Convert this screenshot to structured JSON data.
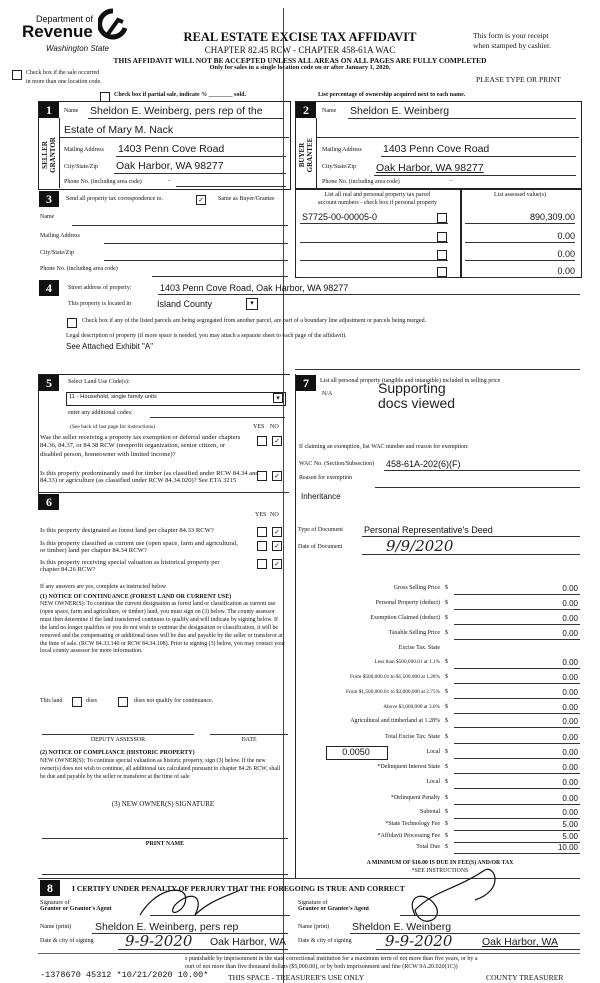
{
  "header": {
    "agency_line1": "Department of",
    "agency_line2": "Revenue",
    "agency_line3": "Washington State",
    "title": "REAL ESTATE EXCISE TAX AFFIDAVIT",
    "chapter": "CHAPTER 82.45 RCW - CHAPTER 458-61A WAC",
    "warning": "THIS AFFIDAVIT WILL NOT BE ACCEPTED UNLESS ALL AREAS ON ALL PAGES ARE FULLY COMPLETED",
    "only_for": "Only for sales in a single location code on or after January 1, 2020.",
    "receipt1": "This form is your receipt",
    "receipt2": "when stamped by cashier.",
    "please": "PLEASE TYPE OR PRINT",
    "multi_loc1": "Check box if the sale occurred",
    "multi_loc2": "in more than one location code.",
    "partial_sale": "Check box if partial sale, indicate %  ________  sold.",
    "list_pct": "List percentage of ownership acquired next to each name."
  },
  "section1": {
    "num": "1",
    "side": "SELLER GRANTOR",
    "name_label": "Name",
    "name": "Sheldon E. Weinberg, pers rep of the",
    "name2": "Estate of Mary M. Nack",
    "mail_label": "Mailing Address",
    "mail": "1403 Penn Cove Road",
    "city_label": "City/State/Zip",
    "city": "Oak Harbor, WA 98277",
    "phone_label": "Phone No. (including area code)",
    "phone": "-"
  },
  "section2": {
    "num": "2",
    "side": "BUYER GRANTEE",
    "name_label": "Name",
    "name": "Sheldon E. Weinberg",
    "mail_label": "Mailing Address",
    "mail": "1403 Penn Cove Road",
    "city_label": "City/State/Zip",
    "city": "Oak Harbor, WA 98277",
    "phone_label": "Phone No. (including area code)",
    "phone": "-"
  },
  "section3": {
    "num": "3",
    "send_label": "Send all property tax correspondence to.",
    "same_label": "Same as Buyer/Grantee",
    "same_checked": true,
    "name_label": "Name",
    "mail_label": "Mailing Address",
    "city_label": "City/State/Zip",
    "phone_label": "Phone No. (including area code)",
    "parcel_header1": "List all real and personal property tax parcel",
    "parcel_header2": "account numbers - check box if personal property",
    "assessed_header": "List assessed value(s)",
    "parcels": [
      {
        "number": "S7725-00-00005-0",
        "value": "890,309.00"
      },
      {
        "number": "",
        "value": "0.00"
      },
      {
        "number": "",
        "value": "0.00"
      },
      {
        "number": "",
        "value": "0.00"
      }
    ]
  },
  "section4": {
    "num": "4",
    "street_label": "Street address of property:",
    "street": "1403 Penn Cove Road, Oak Harbor, WA 98277",
    "county_label": "This property is located in",
    "county": "Island County",
    "segregate": "Check box if any of the listed parcels are being segregated from another parcel, are part of a boundary line adjustment or parcels being merged.",
    "legal_label": "Legal description of property (if more space is needed, you may attach a separate sheet to each page of the affidavit).",
    "legal": "See Attached Exhibit \"A\""
  },
  "section5": {
    "num": "5",
    "select_label": "Select Land Use Code(s):",
    "land_use": "11 - Household, single family units",
    "additional_label": "enter any additional codes:",
    "see_back": "(See back of last page for instructions)",
    "yes": "YES",
    "no": "NO",
    "q1": "Was the seller receiving a property tax exemption or deferral under chapters 84.36, 84.37, or 84.38 RCW (nonprofit organization, senior citizen, or disabled person, homeowner with limited income)?",
    "q2": "Is this property predominantly used for timber (as classified under RCW 84.34 and 84.33) or agriculture (as classified under RCW 84.34.020)? See ETA 3215"
  },
  "section6": {
    "num": "6",
    "yes": "YES",
    "no": "NO",
    "q1": "Is this property designated as forest land per chapter 84.33 RCW?",
    "q2": "Is this property classified as current use (open space, farm and agricultural, or timber) land per chapter 84.34 RCW?",
    "q3": "Is this property receiving special valuation as historical property per chapter 84.26 RCW?",
    "if_yes": "If any answers are yes, complete as instructed below",
    "n1_title": "(1) NOTICE OF CONTINUANCE (FOREST LAND OR CURRENT USE)",
    "n1_text": "NEW OWNER(S): To continue the current designation as forest land or classification as current use (open space, farm and agriculture, or timber) land, you must sign on (3) below. The county assessor must then determine if the land transferred continues to qualify and will indicate by signing below. If the land no longer qualifies or you do not wish to continue the designation or classification, it will be removed and the compensating or additional taxes will be due and payable by the seller or transferor at the time of sale. (RCW 84.33.140 or RCW 84.34.108). Prior to signing (3) below, you may contact your local county assessor for more information.",
    "this_land": "This land",
    "does": "does",
    "does_not": "does not qualify for continuance.",
    "deputy": "DEPUTY ASSESSOR",
    "date": "DATE",
    "n2_title": "(2) NOTICE OF COMPLIANCE (HISTORIC PROPERTY)",
    "n2_text": "NEW OWNER(S): To continue special valuation as historic property, sign (3) below. If the new owner(s) does not wish to continue, all additional tax calculated pursuant to chapter 84.26 RCW, shall be due and payable by the seller or transferor at the time of sale",
    "n3": "(3) NEW OWNER(S) SIGNATURE",
    "print_name": "PRINT NAME"
  },
  "section7": {
    "num": "7",
    "list_label": "List all personal property (tangible and intangible) included in selling price",
    "personal": "N/A",
    "stamp1": "Supporting",
    "stamp2": "docs viewed",
    "exempt_label": "If claiming an exemption, list WAC number and reason for exemption:",
    "wac_label": "WAC No. (Section/Subsection)",
    "wac": "458-61A-202(6)(F)",
    "reason_label": "Reason for exemption",
    "reason": "Inheritance",
    "doctype_label": "Type of Document",
    "doctype": "Personal Representative's Deed",
    "docdate_label": "Date of Document",
    "docdate": "9/9/2020"
  },
  "tax": {
    "rows": [
      {
        "label": "Gross Selling Price",
        "value": "0.00"
      },
      {
        "label": "Personal Property (deduct)",
        "value": "0.00"
      },
      {
        "label": "Exemption Claimed (deduct)",
        "value": "0.00"
      },
      {
        "label": "Taxable Selling Price",
        "value": "0.00"
      },
      {
        "label": "Excise Tax. State",
        "value": null
      },
      {
        "label": "Less than $500,000.01 at 1.1%",
        "value": "0.00",
        "small": true
      },
      {
        "label": "From $500,000.01 to $1,500,000 at 1.28%",
        "value": "0.00",
        "small": true
      },
      {
        "label": "From $1,500,000.01 to $3,000,000 at 2.75%",
        "value": "0.00",
        "small": true
      },
      {
        "label": "Above $3,000,000 at 3.0%",
        "value": "0.00",
        "small": true
      },
      {
        "label": "Agricultural and timberland at 1.28%",
        "value": "0.00"
      },
      {
        "label": "Total Excise Tax. State",
        "value": "0.00"
      },
      {
        "label": "Local",
        "value": "0.00",
        "rate": "0.0050"
      },
      {
        "label": "*Delinquent Interest State",
        "value": "0.00"
      },
      {
        "label": "Local",
        "value": "0.00"
      },
      {
        "label": "*Delinquent Penalty",
        "value": "0.00"
      },
      {
        "label": "Subtotal",
        "value": "0.00"
      },
      {
        "label": "*State Technology Fee",
        "value": "5.00"
      },
      {
        "label": "*Affidavit Processing Fee",
        "value": "5.00"
      },
      {
        "label": "Total Due",
        "value": "10.00"
      }
    ],
    "minimum": "A MINIMUM OF $10.00 IS DUE IN FEE(S) AND/OR TAX",
    "see": "*SEE INSTRUCTIONS"
  },
  "section8": {
    "num": "8",
    "certify": "I CERTIFY UNDER PENALTY OF PERJURY THAT THE FOREGOING IS TRUE AND CORRECT",
    "grantor_sig1": "Signature of",
    "grantor_sig2": "Grantor or Grantor's Agent",
    "grantee_sig1": "Signature of",
    "grantee_sig2": "Grantee or Grantee's Agent",
    "name_label": "Name (print)",
    "grantor_name": "Sheldon E. Weinberg, pers rep",
    "grantee_name": "Sheldon E. Weinberg",
    "date_label": "Date & city of signing",
    "grantor_date": "9-9-2020",
    "grantor_city": "Oak Harbor, WA",
    "grantee_date": "9-9-2020",
    "grantee_city": "Oak Harbor, WA"
  },
  "footer": {
    "perjury1": "s punishable by imprisonment in the state correctional institution for a maximum term of not more than five years, or by a",
    "perjury2": "ourt of not more than five thousand dollars ($5,000.00), or by both imprisonment and fine (RCW 9A.20.020(1C))",
    "stamp": "-1378670 45312 *10/21/2020 10.00*",
    "treasurer_only": "THIS SPACE - TREASURER'S USE ONLY",
    "county_treasurer": "COUNTY TREASURER"
  }
}
